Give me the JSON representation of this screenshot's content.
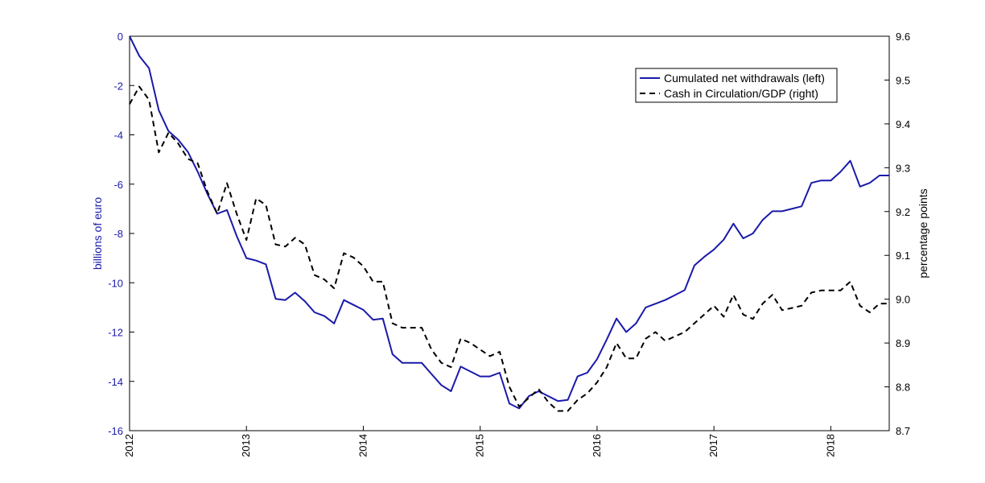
{
  "chart_data": {
    "type": "line",
    "title": "",
    "dual_axis": true,
    "xlim": [
      2012.0,
      2018.5
    ],
    "x_ticks": [
      "2012",
      "2013",
      "2014",
      "2015",
      "2016",
      "2017",
      "2018"
    ],
    "y_left": {
      "label": "billions of euro",
      "ylim": [
        -16,
        0
      ],
      "ticks": [
        "0",
        "-2",
        "-4",
        "-6",
        "-8",
        "-10",
        "-12",
        "-14",
        "-16"
      ],
      "color": "#1a1aaa"
    },
    "y_right": {
      "label": "percentage points",
      "ylim": [
        8.7,
        9.6
      ],
      "ticks": [
        "9.6",
        "9.5",
        "9.4",
        "9.3",
        "9.2",
        "9.1",
        "9.0",
        "8.9",
        "8.8",
        "8.7"
      ],
      "color": "#000000"
    },
    "legend_position": "top-right",
    "grid": false,
    "series": [
      {
        "name": "Cumulated net withdrawals (left)",
        "axis": "left",
        "color": "#1a1aaa",
        "style": "solid",
        "points": [
          [
            "2012-01",
            0.0
          ],
          [
            "2012-02",
            -0.8
          ],
          [
            "2012-03",
            -1.3
          ],
          [
            "2012-04",
            -3.0
          ],
          [
            "2012-05",
            -3.85
          ],
          [
            "2012-06",
            -4.2
          ],
          [
            "2012-07",
            -4.7
          ],
          [
            "2012-08",
            -5.5
          ],
          [
            "2012-09",
            -6.4
          ],
          [
            "2012-10",
            -7.2
          ],
          [
            "2012-11",
            -7.05
          ],
          [
            "2012-12",
            -8.1
          ],
          [
            "2013-01",
            -9.0
          ],
          [
            "2013-02",
            -9.1
          ],
          [
            "2013-03",
            -9.25
          ],
          [
            "2013-04",
            -10.65
          ],
          [
            "2013-05",
            -10.7
          ],
          [
            "2013-06",
            -10.4
          ],
          [
            "2013-07",
            -10.75
          ],
          [
            "2013-08",
            -11.2
          ],
          [
            "2013-09",
            -11.35
          ],
          [
            "2013-10",
            -11.65
          ],
          [
            "2013-11",
            -10.7
          ],
          [
            "2013-12",
            -10.9
          ],
          [
            "2014-01",
            -11.1
          ],
          [
            "2014-02",
            -11.5
          ],
          [
            "2014-03",
            -11.45
          ],
          [
            "2014-04",
            -12.9
          ],
          [
            "2014-05",
            -13.25
          ],
          [
            "2014-06",
            -13.25
          ],
          [
            "2014-07",
            -13.25
          ],
          [
            "2014-08",
            -13.7
          ],
          [
            "2014-09",
            -14.15
          ],
          [
            "2014-10",
            -14.4
          ],
          [
            "2014-11",
            -13.4
          ],
          [
            "2014-12",
            -13.6
          ],
          [
            "2015-01",
            -13.8
          ],
          [
            "2015-02",
            -13.8
          ],
          [
            "2015-03",
            -13.65
          ],
          [
            "2015-04",
            -14.9
          ],
          [
            "2015-05",
            -15.1
          ],
          [
            "2015-06",
            -14.6
          ],
          [
            "2015-07",
            -14.4
          ],
          [
            "2015-08",
            -14.6
          ],
          [
            "2015-09",
            -14.8
          ],
          [
            "2015-10",
            -14.75
          ],
          [
            "2015-11",
            -13.8
          ],
          [
            "2015-12",
            -13.65
          ],
          [
            "2016-01",
            -13.1
          ],
          [
            "2016-02",
            -12.3
          ],
          [
            "2016-03",
            -11.45
          ],
          [
            "2016-04",
            -12.0
          ],
          [
            "2016-05",
            -11.65
          ],
          [
            "2016-06",
            -11.0
          ],
          [
            "2016-07",
            -10.85
          ],
          [
            "2016-08",
            -10.7
          ],
          [
            "2016-09",
            -10.5
          ],
          [
            "2016-10",
            -10.3
          ],
          [
            "2016-11",
            -9.3
          ],
          [
            "2016-12",
            -8.95
          ],
          [
            "2017-01",
            -8.65
          ],
          [
            "2017-02",
            -8.25
          ],
          [
            "2017-03",
            -7.6
          ],
          [
            "2017-04",
            -8.2
          ],
          [
            "2017-05",
            -8.0
          ],
          [
            "2017-06",
            -7.45
          ],
          [
            "2017-07",
            -7.1
          ],
          [
            "2017-08",
            -7.1
          ],
          [
            "2017-09",
            -7.0
          ],
          [
            "2017-10",
            -6.9
          ],
          [
            "2017-11",
            -5.95
          ],
          [
            "2017-12",
            -5.85
          ],
          [
            "2018-01",
            -5.85
          ],
          [
            "2018-02",
            -5.5
          ],
          [
            "2018-03",
            -5.05
          ],
          [
            "2018-04",
            -6.1
          ],
          [
            "2018-05",
            -5.95
          ],
          [
            "2018-06",
            -5.65
          ],
          [
            "2018-07",
            -5.65
          ]
        ]
      },
      {
        "name": "Cash in Circulation/GDP (right)",
        "axis": "right",
        "color": "#000000",
        "style": "dashed",
        "points": [
          [
            "2012-01",
            9.445
          ],
          [
            "2012-02",
            9.485
          ],
          [
            "2012-03",
            9.455
          ],
          [
            "2012-04",
            9.335
          ],
          [
            "2012-05",
            9.38
          ],
          [
            "2012-06",
            9.355
          ],
          [
            "2012-07",
            9.32
          ],
          [
            "2012-08",
            9.31
          ],
          [
            "2012-09",
            9.245
          ],
          [
            "2012-10",
            9.195
          ],
          [
            "2012-11",
            9.265
          ],
          [
            "2012-12",
            9.195
          ],
          [
            "2013-01",
            9.135
          ],
          [
            "2013-02",
            9.23
          ],
          [
            "2013-03",
            9.215
          ],
          [
            "2013-04",
            9.125
          ],
          [
            "2013-05",
            9.12
          ],
          [
            "2013-06",
            9.14
          ],
          [
            "2013-07",
            9.125
          ],
          [
            "2013-08",
            9.055
          ],
          [
            "2013-09",
            9.045
          ],
          [
            "2013-10",
            9.025
          ],
          [
            "2013-11",
            9.105
          ],
          [
            "2013-12",
            9.095
          ],
          [
            "2014-01",
            9.075
          ],
          [
            "2014-02",
            9.04
          ],
          [
            "2014-03",
            9.04
          ],
          [
            "2014-04",
            8.945
          ],
          [
            "2014-05",
            8.935
          ],
          [
            "2014-06",
            8.935
          ],
          [
            "2014-07",
            8.935
          ],
          [
            "2014-08",
            8.885
          ],
          [
            "2014-09",
            8.855
          ],
          [
            "2014-10",
            8.845
          ],
          [
            "2014-11",
            8.91
          ],
          [
            "2014-12",
            8.9
          ],
          [
            "2015-01",
            8.885
          ],
          [
            "2015-02",
            8.87
          ],
          [
            "2015-03",
            8.88
          ],
          [
            "2015-04",
            8.8
          ],
          [
            "2015-05",
            8.755
          ],
          [
            "2015-06",
            8.775
          ],
          [
            "2015-07",
            8.795
          ],
          [
            "2015-08",
            8.765
          ],
          [
            "2015-09",
            8.745
          ],
          [
            "2015-10",
            8.745
          ],
          [
            "2015-11",
            8.77
          ],
          [
            "2015-12",
            8.785
          ],
          [
            "2016-01",
            8.81
          ],
          [
            "2016-02",
            8.845
          ],
          [
            "2016-03",
            8.9
          ],
          [
            "2016-04",
            8.865
          ],
          [
            "2016-05",
            8.865
          ],
          [
            "2016-06",
            8.91
          ],
          [
            "2016-07",
            8.925
          ],
          [
            "2016-08",
            8.905
          ],
          [
            "2016-09",
            8.915
          ],
          [
            "2016-10",
            8.925
          ],
          [
            "2016-11",
            8.945
          ],
          [
            "2016-12",
            8.965
          ],
          [
            "2017-01",
            8.985
          ],
          [
            "2017-02",
            8.96
          ],
          [
            "2017-03",
            9.01
          ],
          [
            "2017-04",
            8.965
          ],
          [
            "2017-05",
            8.955
          ],
          [
            "2017-06",
            8.99
          ],
          [
            "2017-07",
            9.01
          ],
          [
            "2017-08",
            8.975
          ],
          [
            "2017-09",
            8.98
          ],
          [
            "2017-10",
            8.985
          ],
          [
            "2017-11",
            9.015
          ],
          [
            "2017-12",
            9.02
          ],
          [
            "2018-01",
            9.02
          ],
          [
            "2018-02",
            9.02
          ],
          [
            "2018-03",
            9.04
          ],
          [
            "2018-04",
            8.985
          ],
          [
            "2018-05",
            8.97
          ],
          [
            "2018-06",
            8.99
          ],
          [
            "2018-07",
            8.99
          ]
        ]
      }
    ]
  }
}
